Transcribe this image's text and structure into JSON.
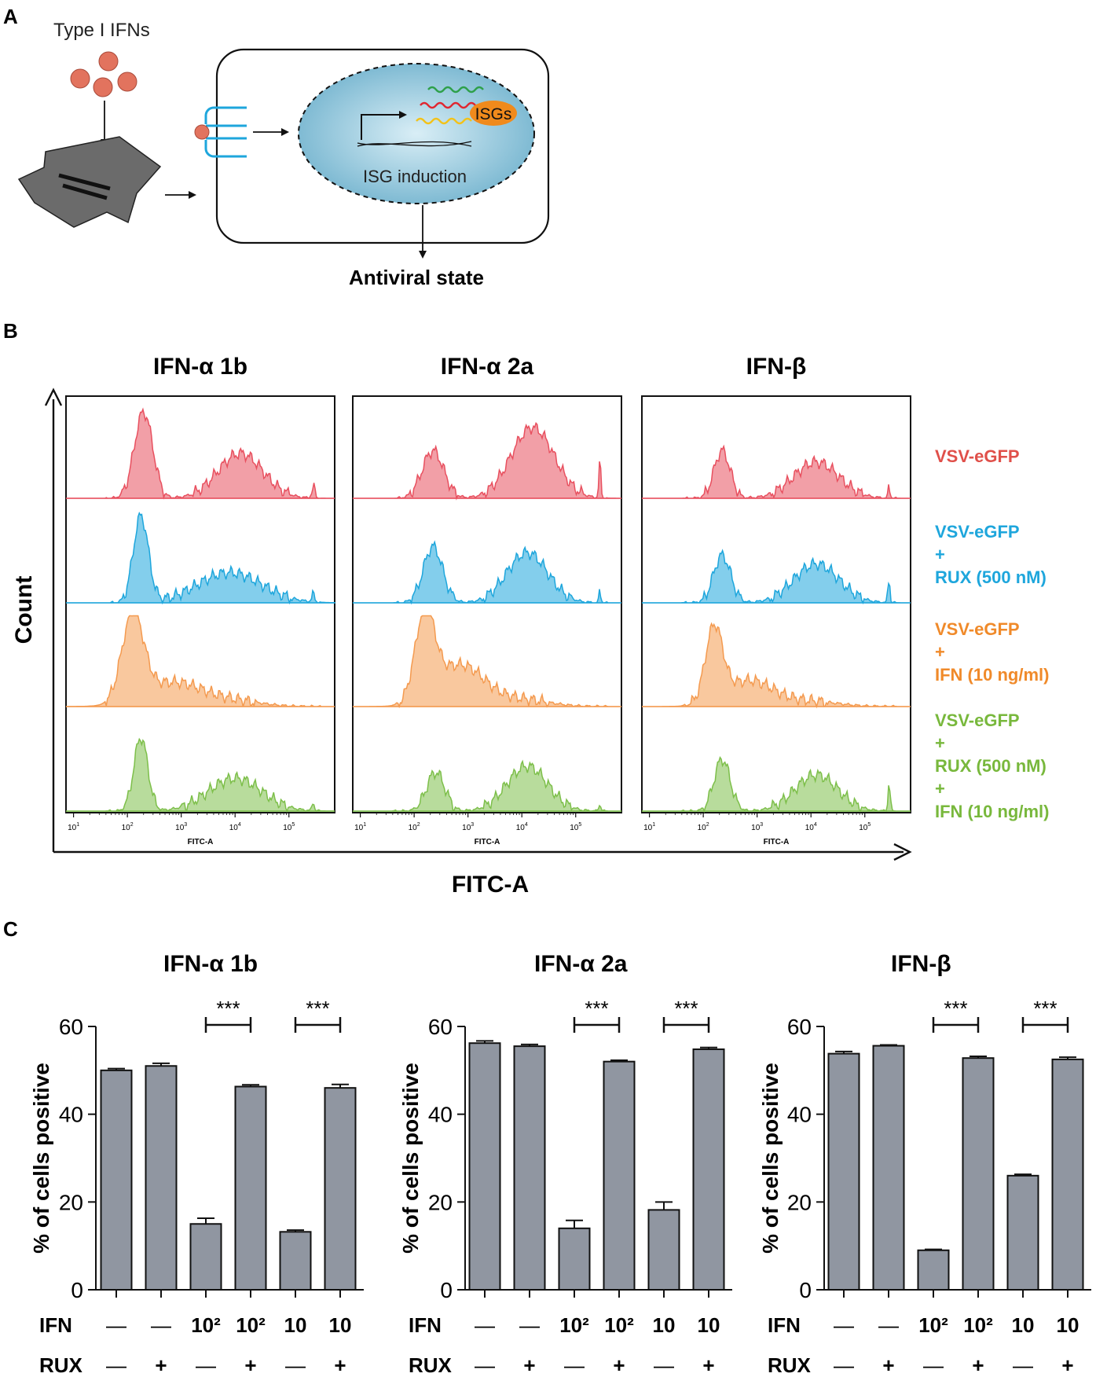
{
  "panel_a": {
    "label": "A",
    "ifn_label": "Type I IFNs",
    "isg_box": "ISGs",
    "induction": "ISG induction",
    "outcome": "Antiviral state"
  },
  "panel_b": {
    "label": "B",
    "titles": [
      "IFN-α 1b",
      "IFN-α 2a",
      "IFN-β"
    ],
    "y_axis": "Count",
    "x_axis": "FITC-A",
    "sub_xlabel": "FITC-A",
    "ticks": [
      "10",
      "10",
      "10",
      "10",
      "10"
    ],
    "tick_exps": [
      "1",
      "2",
      "3",
      "4",
      "5"
    ],
    "colors": {
      "red": "#e8505f",
      "blue": "#1ea6dc",
      "orange": "#f49a4f",
      "green": "#7dbf4a"
    },
    "legend": [
      {
        "lines": [
          "VSV-eGFP"
        ],
        "color": "#e0504a"
      },
      {
        "lines": [
          "VSV-eGFP",
          "+",
          "RUX (500 nM)"
        ],
        "color": "#1ea6dc"
      },
      {
        "lines": [
          "VSV-eGFP",
          "+",
          "IFN (10 ng/ml)"
        ],
        "color": "#f08a2a"
      },
      {
        "lines": [
          "VSV-eGFP",
          "+",
          "RUX (500 nM)",
          "+",
          "IFN (10 ng/ml)"
        ],
        "color": "#78b83c"
      }
    ]
  },
  "panel_c": {
    "label": "C",
    "ylabel": "% of cells positive",
    "row_labels": [
      "IFN",
      "RUX"
    ],
    "ifn_row": [
      "—",
      "—",
      "10²",
      "10²",
      "10",
      "10"
    ],
    "rux_row": [
      "—",
      "+",
      "—",
      "+",
      "—",
      "+"
    ],
    "sig": "***"
  },
  "chart_data": [
    {
      "type": "bar",
      "title": "IFN-α 1b",
      "ylabel": "% of cells positive",
      "ylim": [
        0,
        60
      ],
      "yticks": [
        0,
        20,
        40,
        60
      ],
      "categories": [
        "—/—",
        "—/+",
        "10²/—",
        "10²/+",
        "10/—",
        "10/+"
      ],
      "values": [
        50,
        51,
        15,
        46.3,
        13.2,
        46
      ],
      "errors": [
        0.4,
        0.6,
        1.3,
        0.4,
        0.4,
        0.8
      ],
      "significance": [
        {
          "pair": [
            2,
            3
          ],
          "label": "***"
        },
        {
          "pair": [
            4,
            5
          ],
          "label": "***"
        }
      ]
    },
    {
      "type": "bar",
      "title": "IFN-α 2a",
      "ylabel": "% of cells positive",
      "ylim": [
        0,
        60
      ],
      "yticks": [
        0,
        20,
        40,
        60
      ],
      "categories": [
        "—/—",
        "—/+",
        "10²/—",
        "10²/+",
        "10/—",
        "10/+"
      ],
      "values": [
        56.2,
        55.5,
        14,
        52,
        18.2,
        54.8
      ],
      "errors": [
        0.5,
        0.4,
        1.8,
        0.3,
        1.8,
        0.4
      ],
      "significance": [
        {
          "pair": [
            2,
            3
          ],
          "label": "***"
        },
        {
          "pair": [
            4,
            5
          ],
          "label": "***"
        }
      ]
    },
    {
      "type": "bar",
      "title": "IFN-β",
      "ylabel": "% of cells positive",
      "ylim": [
        0,
        60
      ],
      "yticks": [
        0,
        20,
        40,
        60
      ],
      "categories": [
        "—/—",
        "—/+",
        "10²/—",
        "10²/+",
        "10/—",
        "10/+"
      ],
      "values": [
        53.8,
        55.6,
        9,
        52.8,
        26,
        52.5
      ],
      "errors": [
        0.5,
        0.2,
        0.2,
        0.4,
        0.3,
        0.5
      ],
      "significance": [
        {
          "pair": [
            2,
            3
          ],
          "label": "***"
        },
        {
          "pair": [
            4,
            5
          ],
          "label": "***"
        }
      ]
    }
  ]
}
